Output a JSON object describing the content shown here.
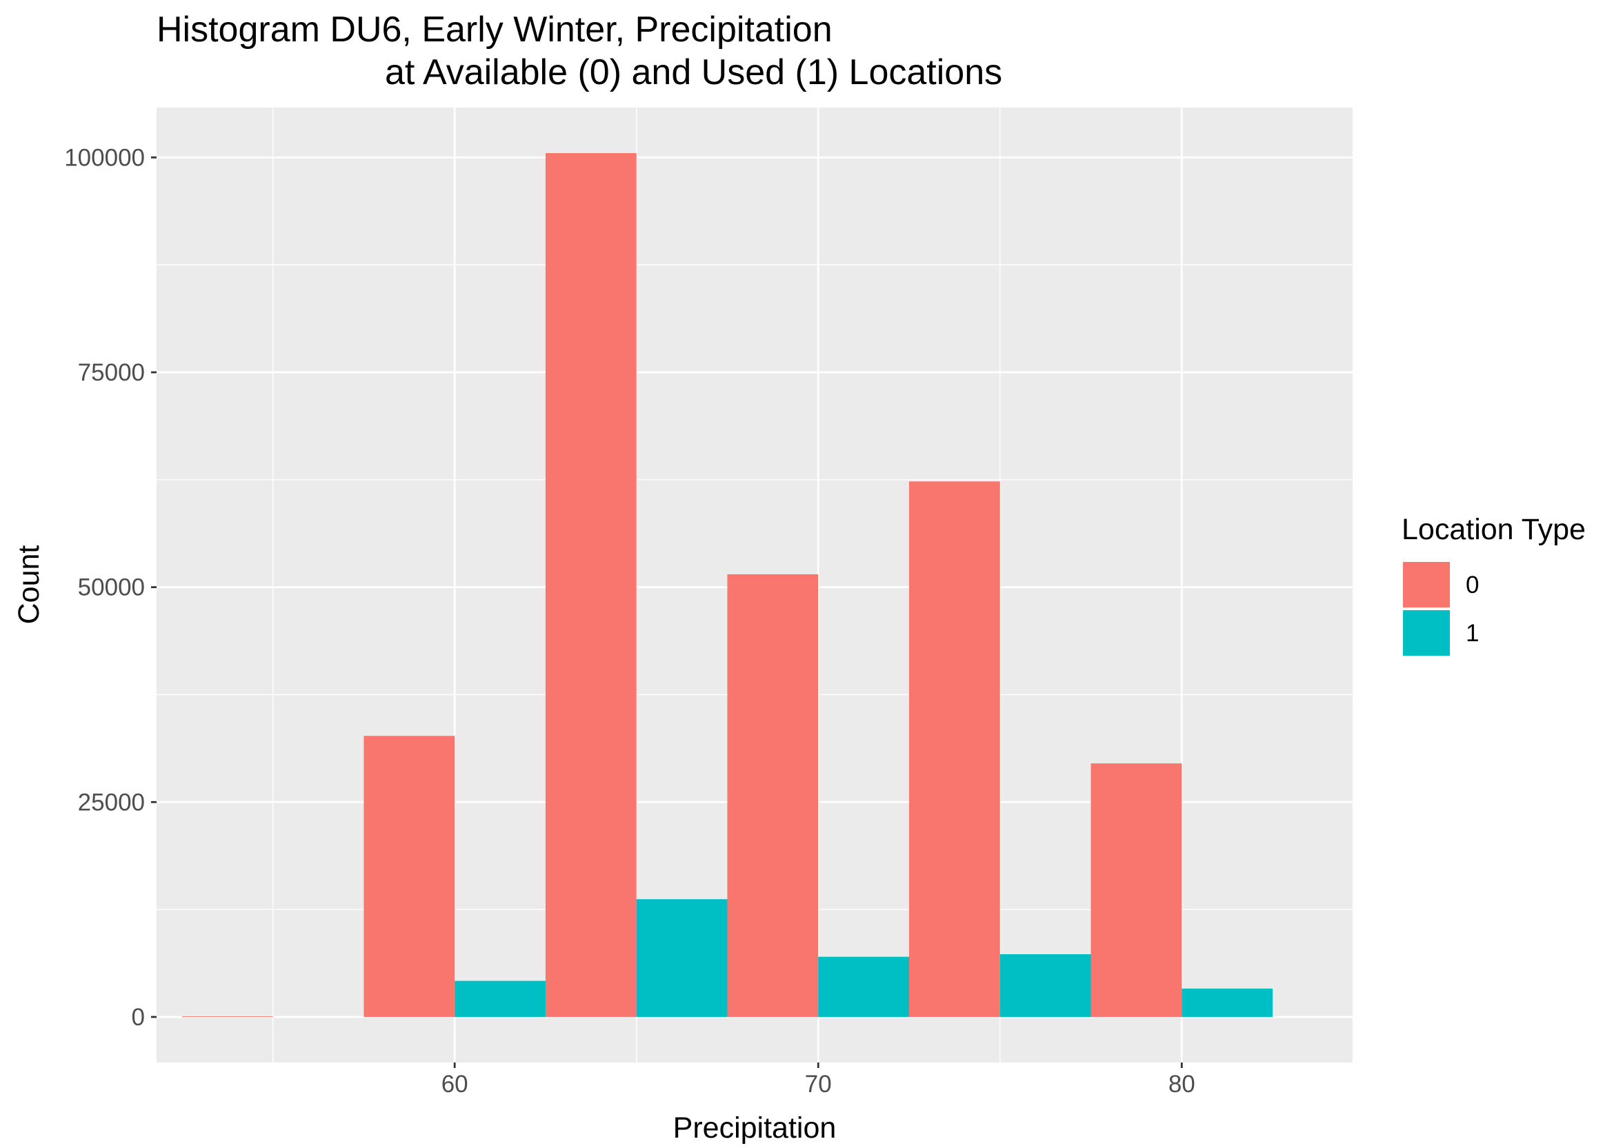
{
  "chart_data": {
    "type": "bar",
    "title": "Histogram DU6, Early Winter, Precipitation",
    "subtitle": "at Available (0) and Used (1) Locations",
    "xlabel": "Precipitation",
    "ylabel": "Count",
    "bin_width": 5,
    "x_bin_centers": [
      55,
      60,
      65,
      70,
      75,
      80
    ],
    "xlim": [
      51.8,
      84.7
    ],
    "ylim": [
      -5300,
      105800
    ],
    "x_ticks": [
      60,
      70,
      80
    ],
    "x_tick_labels": [
      "60",
      "70",
      "80"
    ],
    "y_ticks": [
      0,
      25000,
      50000,
      75000,
      100000
    ],
    "y_tick_labels": [
      "0",
      "25000",
      "50000",
      "75000",
      "100000"
    ],
    "position": "dodge",
    "grid": true,
    "legend": {
      "title": "Location Type",
      "placement": "right",
      "entries": [
        "0",
        "1"
      ]
    },
    "series": [
      {
        "name": "0",
        "color": "#F8766D",
        "values": [
          80,
          32700,
          100500,
          51500,
          62300,
          29500
        ]
      },
      {
        "name": "1",
        "color": "#00BFC4",
        "values": [
          0,
          4200,
          13700,
          7000,
          7300,
          3300
        ]
      }
    ]
  }
}
